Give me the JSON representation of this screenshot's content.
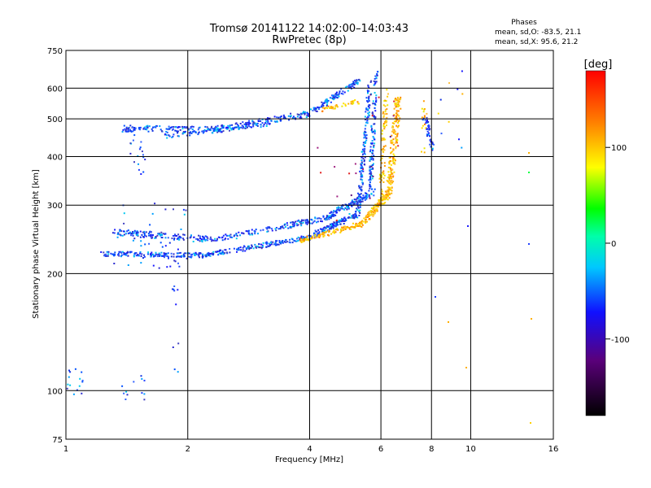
{
  "chart_data": {
    "type": "scatter",
    "title": "Tromsø 20141122 14:02:00–14:03:43",
    "subtitle": "RwPretec (8p)",
    "xlabel": "Frequency [MHz]",
    "ylabel": "Stationary phase Virtual Height [km]",
    "x_scale": "log2",
    "y_scale": "log",
    "xlim": [
      1,
      16
    ],
    "ylim": [
      75,
      750
    ],
    "x_ticks": [
      1,
      2,
      4,
      6,
      8,
      10,
      16
    ],
    "x_tick_labels": [
      "1",
      "2",
      "4",
      "6",
      "8",
      "10",
      "16"
    ],
    "y_ticks": [
      75,
      100,
      200,
      300,
      400,
      500,
      600,
      750
    ],
    "y_tick_labels": [
      "75",
      "100",
      "200",
      "300",
      "400",
      "500",
      "600",
      "750"
    ],
    "grid": true,
    "phase_box": {
      "title": "Phases",
      "line_o": "mean, sd,O: -83.5, 21.1",
      "line_x": "mean, sd,X:  95.6, 21.2"
    },
    "colorbar": {
      "label": "[deg]",
      "range": [
        -180,
        180
      ],
      "ticks": [
        100,
        0,
        -100
      ],
      "tick_labels": [
        "100",
        "0",
        "-100"
      ]
    },
    "trace_descriptions": [
      "E/F1 trace (blue, phase ~-110 deg) rising from 2.1 MHz at ~225 km to ~5.5 MHz at ~640 km",
      "F2 O-mode trace (blue) ~240 km at 2 MHz, cusping near 5.5-5.8 MHz",
      "F2 X-mode trace (yellow/orange, phase ~+110 deg) 4-6.8 MHz, 245-620 km",
      "Multi-hop blue trace ~450-500 km, 1.5-4 MHz",
      "Sparse scatter near 1-2 MHz at 100-300 km and beyond 7 MHz"
    ]
  }
}
